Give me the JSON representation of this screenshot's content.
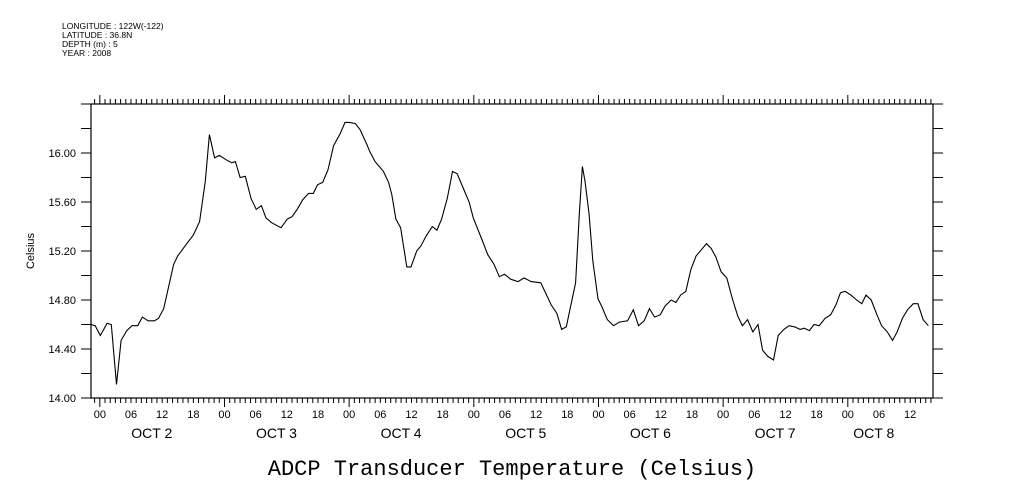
{
  "chart_data": {
    "type": "line",
    "title": "ADCP Transducer Temperature (Celsius)",
    "xlabel": "",
    "ylabel": "Celsius",
    "x_units": "hours since OCT 2 00:00",
    "xlim": [
      -1.7,
      160.4
    ],
    "ylim": [
      14.0,
      16.4
    ],
    "grid": false,
    "metadata_lines": [
      "LONGITUDE : 122W(-122)",
      "LATITUDE : 36.8N",
      "DEPTH (m) : 5",
      "YEAR : 2008"
    ],
    "y_ticks": [
      {
        "value": 14.0,
        "label": "14.00"
      },
      {
        "value": 14.4,
        "label": "14.40"
      },
      {
        "value": 14.8,
        "label": "14.80"
      },
      {
        "value": 15.2,
        "label": "15.20"
      },
      {
        "value": 15.6,
        "label": "15.60"
      },
      {
        "value": 16.0,
        "label": "16.00"
      }
    ],
    "hour_labels": [
      "00",
      "06",
      "12",
      "18"
    ],
    "day_labels": [
      "OCT 2",
      "OCT 3",
      "OCT 4",
      "OCT 5",
      "OCT 6",
      "OCT 7",
      "OCT 8"
    ],
    "series": [
      {
        "name": "ADCP Transducer Temperature",
        "color": "#000000",
        "x": [
          -1.7,
          -0.9,
          0.1,
          1.4,
          2.2,
          3.2,
          4.1,
          5.2,
          6.2,
          7.3,
          8.2,
          9.3,
          10.5,
          11.3,
          12.3,
          13.2,
          14.2,
          15.0,
          16.4,
          18.0,
          19.2,
          20.3,
          21.1,
          22.1,
          23.0,
          24.5,
          25.4,
          26.1,
          27.0,
          28.0,
          29.1,
          30.1,
          31.1,
          32.0,
          33.1,
          34.9,
          36.1,
          37.0,
          38.0,
          39.1,
          40.2,
          41.1,
          41.9,
          42.9,
          43.9,
          45.0,
          46.3,
          47.2,
          48.1,
          49.2,
          50.1,
          51.4,
          52.0,
          53.0,
          54.6,
          55.6,
          56.2,
          57.0,
          57.9,
          59.1,
          59.9,
          61.0,
          61.8,
          62.8,
          64.0,
          64.9,
          65.8,
          66.9,
          67.9,
          68.8,
          70.0,
          71.1,
          71.9,
          73.4,
          74.7,
          75.9,
          76.9,
          77.9,
          79.1,
          80.5,
          81.7,
          83.0,
          84.9,
          85.9,
          86.9,
          88.0,
          88.9,
          89.8,
          90.5,
          91.6,
          92.3,
          92.9,
          93.4,
          94.2,
          94.9,
          95.9,
          96.6,
          97.7,
          98.9,
          100.0,
          101.6,
          102.7,
          103.7,
          104.8,
          105.8,
          106.8,
          107.9,
          108.8,
          110.0,
          110.9,
          111.8,
          112.8,
          113.8,
          114.8,
          115.8,
          116.8,
          117.7,
          118.6,
          119.6,
          120.7,
          121.7,
          122.8,
          123.7,
          124.7,
          125.7,
          126.7,
          127.6,
          128.6,
          129.7,
          130.6,
          131.7,
          132.7,
          133.8,
          134.8,
          135.6,
          136.6,
          137.5,
          138.5,
          139.6,
          140.7,
          141.7,
          142.6,
          143.5,
          144.6,
          145.7,
          146.7,
          147.5,
          148.5,
          149.6,
          150.5,
          151.6,
          152.6,
          153.5,
          154.5,
          155.5,
          156.6,
          157.5,
          158.5,
          159.5
        ],
        "y": [
          14.6,
          14.59,
          14.51,
          14.61,
          14.6,
          14.11,
          14.47,
          14.55,
          14.59,
          14.59,
          14.66,
          14.63,
          14.63,
          14.65,
          14.73,
          14.9,
          15.09,
          15.16,
          15.24,
          15.33,
          15.44,
          15.77,
          16.15,
          15.96,
          15.98,
          15.94,
          15.92,
          15.93,
          15.8,
          15.81,
          15.63,
          15.54,
          15.57,
          15.47,
          15.43,
          15.39,
          15.46,
          15.48,
          15.54,
          15.62,
          15.67,
          15.67,
          15.74,
          15.76,
          15.86,
          16.06,
          16.16,
          16.25,
          16.25,
          16.24,
          16.19,
          16.07,
          16.01,
          15.93,
          15.85,
          15.76,
          15.66,
          15.46,
          15.39,
          15.07,
          15.07,
          15.2,
          15.24,
          15.32,
          15.4,
          15.37,
          15.46,
          15.63,
          15.85,
          15.83,
          15.71,
          15.6,
          15.47,
          15.31,
          15.17,
          15.09,
          14.99,
          15.01,
          14.97,
          14.95,
          14.98,
          14.95,
          14.94,
          14.85,
          14.76,
          14.69,
          14.56,
          14.58,
          14.72,
          14.94,
          15.5,
          15.89,
          15.77,
          15.5,
          15.12,
          14.81,
          14.75,
          14.64,
          14.59,
          14.62,
          14.63,
          14.72,
          14.59,
          14.63,
          14.73,
          14.66,
          14.68,
          14.75,
          14.8,
          14.78,
          14.84,
          14.87,
          15.05,
          15.16,
          15.21,
          15.26,
          15.22,
          15.15,
          15.03,
          14.98,
          14.82,
          14.67,
          14.59,
          14.64,
          14.54,
          14.6,
          14.39,
          14.34,
          14.31,
          14.51,
          14.56,
          14.59,
          14.58,
          14.56,
          14.57,
          14.55,
          14.6,
          14.59,
          14.65,
          14.68,
          14.76,
          14.86,
          14.87,
          14.84,
          14.8,
          14.77,
          14.84,
          14.8,
          14.68,
          14.59,
          14.54,
          14.47,
          14.54,
          14.65,
          14.72,
          14.77,
          14.77,
          14.64,
          14.59
        ]
      }
    ]
  }
}
